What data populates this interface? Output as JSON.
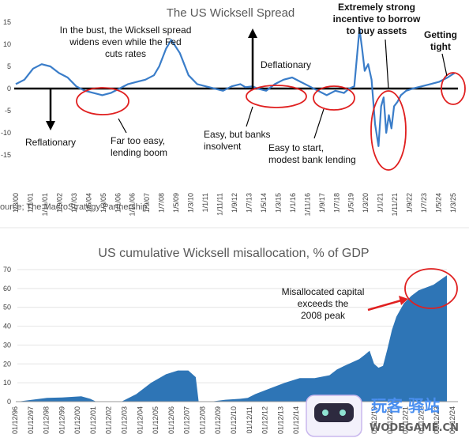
{
  "chart_data": [
    {
      "type": "line",
      "title": "The US Wicksell Spread",
      "ylim": [
        -20,
        20
      ],
      "yticks": [
        "15",
        "10",
        "5",
        "0",
        "-5",
        "-10",
        "-15"
      ],
      "xlabels": [
        "1/3/00",
        "1/1/01",
        "1/11/01",
        "1/9/02",
        "1/7/03",
        "1/5/04",
        "1/3/05",
        "1/1/06",
        "1/11/06",
        "1/9/07",
        "1/7/08",
        "1/5/09",
        "1/3/10",
        "1/1/11",
        "1/11/11",
        "1/9/12",
        "1/7/13",
        "1/5/14",
        "1/3/15",
        "1/1/16",
        "1/11/16",
        "1/9/17",
        "1/7/18",
        "1/5/19",
        "1/3/20",
        "1/1/21",
        "1/11/21",
        "1/9/22",
        "1/7/23",
        "1/5/24",
        "1/3/25"
      ],
      "series": [
        {
          "color": "#3a7dc9",
          "x": [
            2000,
            2000.5,
            2001,
            2001.5,
            2002,
            2002.5,
            2003,
            2003.5,
            2004,
            2004.5,
            2005,
            2005.5,
            2006,
            2006.5,
            2007,
            2007.5,
            2008,
            2008.3,
            2008.7,
            2009,
            2009.5,
            2010,
            2010.5,
            2011,
            2011.5,
            2012,
            2012.5,
            2013,
            2013.3,
            2013.7,
            2014,
            2014.5,
            2015,
            2015.5,
            2016,
            2016.5,
            2017,
            2017.5,
            2018,
            2018.5,
            2019,
            2019.3,
            2019.6,
            2019.9,
            2020.05,
            2020.2,
            2020.4,
            2020.6,
            2020.8,
            2021,
            2021.15,
            2021.3,
            2021.45,
            2021.6,
            2021.75,
            2021.9,
            2022.1,
            2022.3,
            2022.6,
            2023,
            2023.5,
            2024,
            2024.5,
            2025,
            2025.4
          ],
          "y": [
            1,
            2,
            4.5,
            5.5,
            5,
            3.5,
            2.5,
            0.5,
            -0.5,
            -1,
            -1.5,
            -1,
            0,
            1,
            1.5,
            2,
            3,
            5,
            9,
            11,
            8,
            3,
            1,
            0.5,
            0,
            -0.5,
            0.5,
            1,
            0.3,
            0.5,
            0,
            -0.5,
            1,
            2,
            2.5,
            1.5,
            0.5,
            -0.5,
            -1.5,
            -0.5,
            -1,
            0,
            0.5,
            13.5,
            9,
            4,
            5.5,
            2,
            -8,
            -13,
            -4,
            -2,
            -10,
            -6,
            -9,
            -4,
            -3,
            -1.5,
            -0.5,
            0,
            0.5,
            1,
            1.5,
            2.5,
            3.5
          ]
        }
      ],
      "annotations": [
        "In the bust, the Wicksell spread widens even while the Fed cuts rates",
        "Deflationary",
        "Reflationary",
        "Far too easy, lending boom",
        "Easy, but banks insolvent",
        "Easy to start, modest bank lending",
        "Extremely strong incentive to borrow to buy assets",
        "Getting tight"
      ]
    },
    {
      "type": "area",
      "title": "US cumulative Wicksell misallocation, % of GDP",
      "ylim": [
        0,
        70
      ],
      "yticks": [
        "70",
        "60",
        "50",
        "40",
        "30",
        "20",
        "10",
        "0"
      ],
      "xlabels": [
        "01/12/96",
        "01/12/97",
        "01/12/98",
        "01/12/99",
        "01/12/00",
        "01/12/01",
        "01/12/02",
        "01/12/03",
        "01/12/04",
        "01/12/05",
        "01/12/06",
        "01/12/07",
        "01/12/08",
        "01/12/09",
        "01/12/10",
        "01/12/11",
        "01/12/12",
        "01/12/13",
        "01/12/14",
        "01/12/15",
        "01/12/16",
        "01/12/17",
        "01/12/18",
        "01/12/19",
        "01/12/20",
        "01/12/21",
        "01/12/22",
        "01/12/23",
        "01/12/24"
      ],
      "series": [
        {
          "color": "#2e75b6",
          "x": [
            1996,
            1997,
            1998,
            1999,
            2000.3,
            2000.9,
            2001.3,
            2003,
            2004,
            2005,
            2006,
            2006.8,
            2007.5,
            2008,
            2008.2,
            2009,
            2010,
            2011,
            2011.5,
            2012,
            2013,
            2014,
            2015,
            2016,
            2017,
            2017.5,
            2018,
            2019,
            2019.4,
            2019.7,
            2020,
            2020.3,
            2020.6,
            2020.9,
            2021.2,
            2021.5,
            2022,
            2022.5,
            2023,
            2024,
            2024.9
          ],
          "y": [
            0,
            1,
            2,
            2.2,
            2.8,
            1.5,
            0,
            0,
            4,
            10,
            14.5,
            16.5,
            16.5,
            13,
            0,
            0,
            1,
            1.5,
            2,
            4,
            7,
            10,
            12.5,
            12.5,
            14,
            17,
            19,
            22.5,
            25,
            27,
            20,
            18,
            19,
            28,
            38,
            45,
            52,
            56,
            59,
            62,
            67
          ]
        }
      ],
      "annotations": [
        "Misallocated capital exceeds the 2008 peak"
      ]
    }
  ],
  "source_text": "ource; The MacroStrategy Partnership",
  "watermark": {
    "text_cn": "玩客 驿站",
    "text_en": "WODEGAME.CN"
  }
}
